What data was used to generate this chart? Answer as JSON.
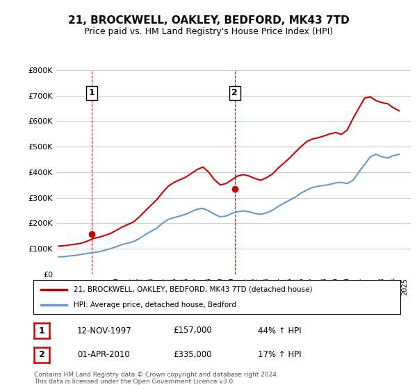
{
  "title": "21, BROCKWELL, OAKLEY, BEDFORD, MK43 7TD",
  "subtitle": "Price paid vs. HM Land Registry's House Price Index (HPI)",
  "ylim": [
    0,
    800000
  ],
  "yticks": [
    0,
    100000,
    200000,
    300000,
    400000,
    500000,
    600000,
    700000,
    800000
  ],
  "ytick_labels": [
    "£0",
    "£100K",
    "£200K",
    "£300K",
    "£400K",
    "£500K",
    "£600K",
    "£700K",
    "£800K"
  ],
  "sale1_date": 1997.87,
  "sale1_price": 157000,
  "sale1_label": "1",
  "sale2_date": 2010.25,
  "sale2_price": 335000,
  "sale2_label": "2",
  "line_color_red": "#cc0000",
  "line_color_blue": "#6699cc",
  "vline_color": "#cc0000",
  "dot_color": "#cc0000",
  "grid_color": "#cccccc",
  "bg_color": "#ffffff",
  "legend_entry1": "21, BROCKWELL, OAKLEY, BEDFORD, MK43 7TD (detached house)",
  "legend_entry2": "HPI: Average price, detached house, Bedford",
  "table_row1": [
    "1",
    "12-NOV-1997",
    "£157,000",
    "44% ↑ HPI"
  ],
  "table_row2": [
    "2",
    "01-APR-2010",
    "£335,000",
    "17% ↑ HPI"
  ],
  "footnote": "Contains HM Land Registry data © Crown copyright and database right 2024.\nThis data is licensed under the Open Government Licence v3.0.",
  "hpi_years": [
    1995,
    1995.5,
    1996,
    1996.5,
    1997,
    1997.5,
    1998,
    1998.5,
    1999,
    1999.5,
    2000,
    2000.5,
    2001,
    2001.5,
    2002,
    2002.5,
    2003,
    2003.5,
    2004,
    2004.5,
    2005,
    2005.5,
    2006,
    2006.5,
    2007,
    2007.5,
    2008,
    2008.5,
    2009,
    2009.5,
    2010,
    2010.5,
    2011,
    2011.5,
    2012,
    2012.5,
    2013,
    2013.5,
    2014,
    2014.5,
    2015,
    2015.5,
    2016,
    2016.5,
    2017,
    2017.5,
    2018,
    2018.5,
    2019,
    2019.5,
    2020,
    2020.5,
    2021,
    2021.5,
    2022,
    2022.5,
    2023,
    2023.5,
    2024,
    2024.5
  ],
  "hpi_values": [
    68000,
    69000,
    72000,
    74000,
    78000,
    82000,
    85000,
    88000,
    94000,
    100000,
    108000,
    116000,
    122000,
    128000,
    140000,
    155000,
    168000,
    180000,
    200000,
    215000,
    222000,
    228000,
    235000,
    245000,
    255000,
    258000,
    248000,
    235000,
    225000,
    228000,
    238000,
    245000,
    248000,
    245000,
    238000,
    235000,
    240000,
    250000,
    265000,
    278000,
    290000,
    302000,
    318000,
    330000,
    340000,
    345000,
    348000,
    352000,
    358000,
    360000,
    355000,
    368000,
    400000,
    430000,
    460000,
    470000,
    460000,
    455000,
    465000,
    470000
  ],
  "price_years": [
    1995,
    1995.5,
    1996,
    1996.5,
    1997,
    1997.5,
    1998,
    1998.5,
    1999,
    1999.5,
    2000,
    2000.5,
    2001,
    2001.5,
    2002,
    2002.5,
    2003,
    2003.5,
    2004,
    2004.5,
    2005,
    2005.5,
    2006,
    2006.5,
    2007,
    2007.5,
    2008,
    2008.5,
    2009,
    2009.5,
    2010,
    2010.5,
    2011,
    2011.5,
    2012,
    2012.5,
    2013,
    2013.5,
    2014,
    2014.5,
    2015,
    2015.5,
    2016,
    2016.5,
    2017,
    2017.5,
    2018,
    2018.5,
    2019,
    2019.5,
    2020,
    2020.5,
    2021,
    2021.5,
    2022,
    2022.5,
    2023,
    2023.5,
    2024,
    2024.5
  ],
  "price_values": [
    110000,
    112000,
    115000,
    118000,
    122000,
    130000,
    140000,
    145000,
    152000,
    160000,
    172000,
    185000,
    195000,
    205000,
    225000,
    248000,
    270000,
    292000,
    320000,
    345000,
    360000,
    370000,
    380000,
    395000,
    410000,
    420000,
    400000,
    370000,
    350000,
    355000,
    370000,
    385000,
    390000,
    385000,
    375000,
    368000,
    378000,
    392000,
    415000,
    435000,
    455000,
    478000,
    500000,
    520000,
    530000,
    535000,
    542000,
    550000,
    555000,
    548000,
    565000,
    610000,
    650000,
    690000,
    695000,
    680000,
    672000,
    668000,
    652000,
    640000
  ]
}
